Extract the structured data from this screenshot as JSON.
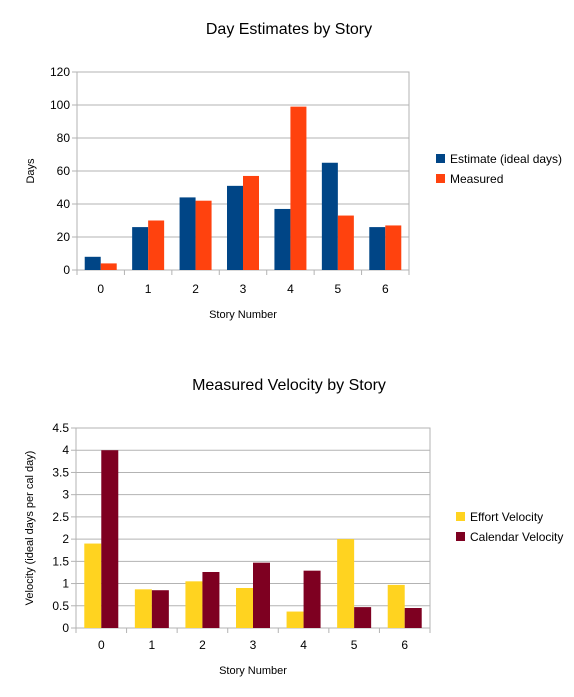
{
  "colors": {
    "estimate": "#004586",
    "measured": "#ff420e",
    "effort": "#ffd320",
    "calendar": "#7e0021",
    "grid": "#b3b3b3"
  },
  "chart_data": [
    {
      "type": "bar",
      "title": "Day Estimates by Story",
      "xlabel": "Story Number",
      "ylabel": "Days",
      "categories": [
        "0",
        "1",
        "2",
        "3",
        "4",
        "5",
        "6"
      ],
      "ylim": [
        0,
        120
      ],
      "yticks": [
        0,
        20,
        40,
        60,
        80,
        100,
        120
      ],
      "ytick_labels": [
        "0",
        "20",
        "40",
        "60",
        "80",
        "100",
        "120"
      ],
      "grid": true,
      "legend_position": "right",
      "series": [
        {
          "name": "Estimate (ideal days)",
          "color": "#004586",
          "values": [
            8,
            26,
            44,
            51,
            37,
            65,
            26
          ]
        },
        {
          "name": "Measured",
          "color": "#ff420e",
          "values": [
            4,
            30,
            42,
            57,
            99,
            33,
            27
          ]
        }
      ]
    },
    {
      "type": "bar",
      "title": "Measured Velocity by Story",
      "xlabel": "Story Number",
      "ylabel": "Velocity (ideal days per cal day)",
      "categories": [
        "0",
        "1",
        "2",
        "3",
        "4",
        "5",
        "6"
      ],
      "ylim": [
        0,
        4.5
      ],
      "yticks": [
        0,
        0.5,
        1,
        1.5,
        2,
        2.5,
        3,
        3.5,
        4,
        4.5
      ],
      "ytick_labels": [
        "0",
        "0.5",
        "1",
        "1.5",
        "2",
        "2.5",
        "3",
        "3.5",
        "4",
        "4.5"
      ],
      "grid": true,
      "legend_position": "right",
      "series": [
        {
          "name": "Effort Velocity",
          "color": "#ffd320",
          "values": [
            1.9,
            0.87,
            1.05,
            0.9,
            0.37,
            2.0,
            0.97
          ]
        },
        {
          "name": "Calendar Velocity",
          "color": "#7e0021",
          "values": [
            4.0,
            0.85,
            1.26,
            1.47,
            1.29,
            0.47,
            0.45
          ]
        }
      ]
    }
  ]
}
